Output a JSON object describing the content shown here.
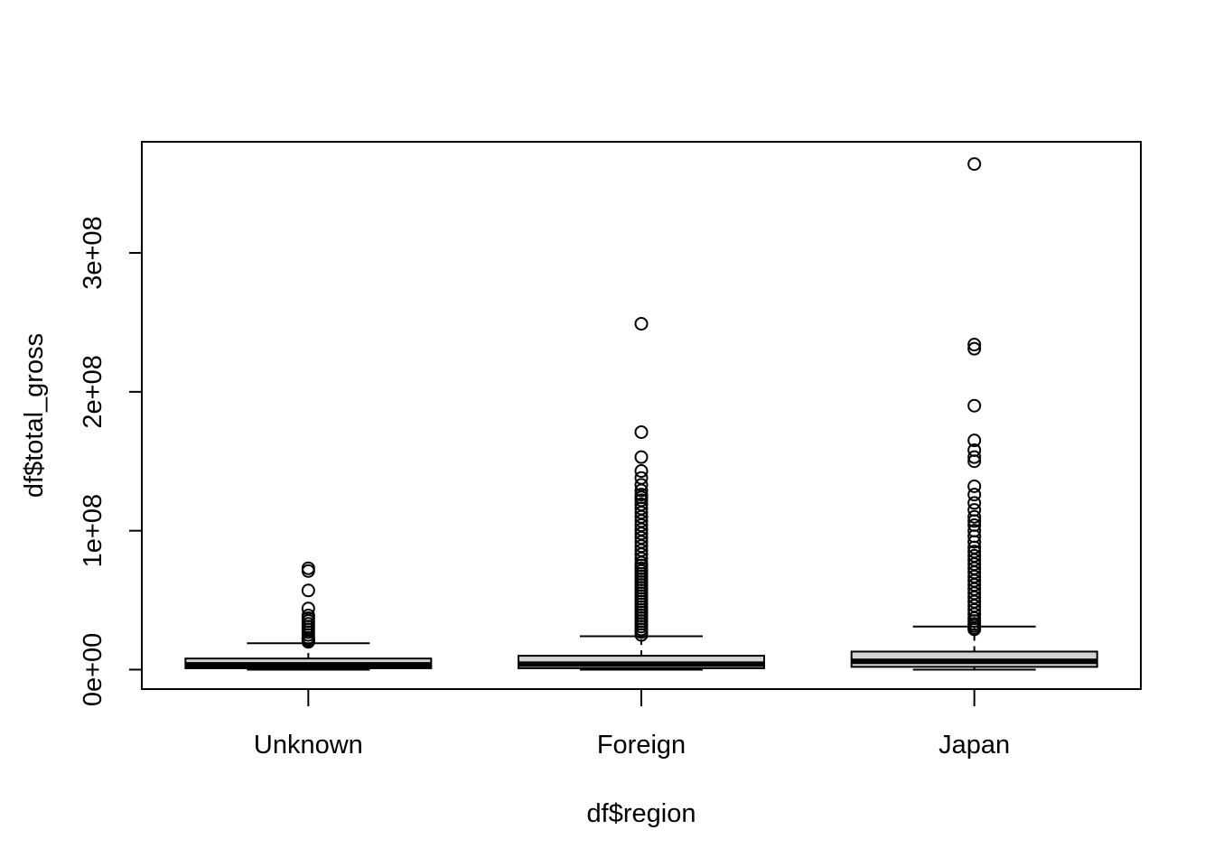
{
  "chart_data": {
    "type": "boxplot",
    "title": "",
    "xlabel": "df$region",
    "ylabel": "df$total_gross",
    "categories": [
      "Unknown",
      "Foreign",
      "Japan"
    ],
    "y_ticks": [
      {
        "value": 0,
        "label": "0e+00"
      },
      {
        "value": 100000000,
        "label": "1e+08"
      },
      {
        "value": 200000000,
        "label": "2e+08"
      },
      {
        "value": 300000000,
        "label": "3e+08"
      }
    ],
    "ylim": [
      -14000000,
      380000000
    ],
    "colors": {
      "box_fill": "#d3d3d3",
      "stroke": "#000000"
    },
    "boxes": [
      {
        "name": "Unknown",
        "whisker_low": 0,
        "q1": 1000000,
        "median": 3500000,
        "q3": 8000000,
        "whisker_high": 19000000,
        "outliers": [
          20000000,
          21000000,
          22000000,
          23000000,
          25000000,
          27000000,
          29000000,
          31000000,
          33000000,
          35000000,
          37000000,
          39000000,
          44000000,
          57000000,
          71000000,
          73000000
        ]
      },
      {
        "name": "Foreign",
        "whisker_low": 0,
        "q1": 1000000,
        "median": 4000000,
        "q3": 10000000,
        "whisker_high": 24000000,
        "outliers": [
          25000000,
          27000000,
          29000000,
          31000000,
          33000000,
          35000000,
          37000000,
          39000000,
          41000000,
          43000000,
          45000000,
          47000000,
          49000000,
          51000000,
          53000000,
          55000000,
          57000000,
          59000000,
          61000000,
          63000000,
          65000000,
          67000000,
          69000000,
          71000000,
          73000000,
          75000000,
          77000000,
          80000000,
          83000000,
          86000000,
          89000000,
          92000000,
          95000000,
          98000000,
          101000000,
          104000000,
          107000000,
          110000000,
          113000000,
          116000000,
          119000000,
          122000000,
          124000000,
          126000000,
          129000000,
          133000000,
          138000000,
          143000000,
          153000000,
          171000000,
          249000000
        ]
      },
      {
        "name": "Japan",
        "whisker_low": 0,
        "q1": 2000000,
        "median": 6000000,
        "q3": 13000000,
        "whisker_high": 31000000,
        "outliers": [
          29000000,
          30000000,
          31500000,
          33000000,
          35000000,
          37000000,
          40000000,
          43000000,
          46000000,
          49000000,
          52000000,
          55000000,
          58000000,
          61000000,
          64000000,
          67000000,
          70000000,
          73000000,
          76000000,
          79000000,
          82000000,
          85000000,
          88000000,
          92000000,
          96000000,
          100000000,
          104000000,
          107000000,
          110000000,
          115000000,
          120000000,
          126000000,
          132000000,
          150000000,
          153000000,
          158000000,
          165000000,
          190000000,
          231000000,
          234000000,
          364000000
        ]
      }
    ]
  }
}
